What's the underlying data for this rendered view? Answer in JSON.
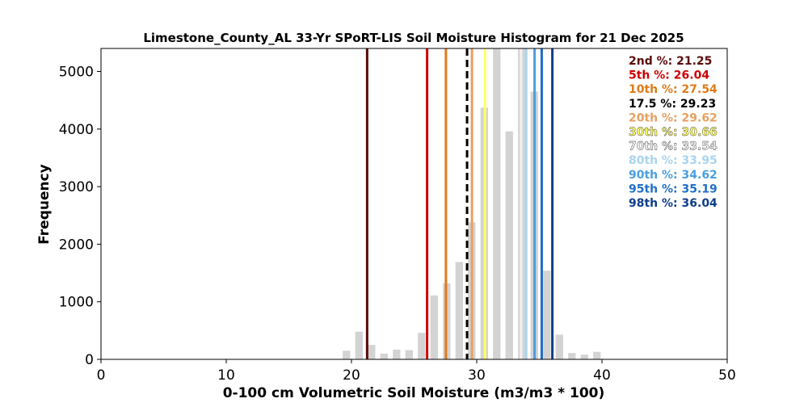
{
  "chart_data": {
    "type": "bar",
    "title": "Limestone_County_AL 33-Yr SPoRT-LIS Soil Moisture Histogram for 21 Dec 2025",
    "xlabel": "0-100 cm Volumetric Soil Moisture (m3/m3 * 100)",
    "ylabel": "Frequency",
    "xlim": [
      0,
      50
    ],
    "ylim": [
      0,
      5400
    ],
    "xticks": [
      0,
      10,
      20,
      30,
      40,
      50
    ],
    "yticks": [
      0,
      1000,
      2000,
      3000,
      4000,
      5000
    ],
    "bar_width": 0.6,
    "bar_color": "#d3d3d3",
    "bars": [
      {
        "x": 19.6,
        "value": 150
      },
      {
        "x": 20.6,
        "value": 480
      },
      {
        "x": 21.6,
        "value": 250
      },
      {
        "x": 22.6,
        "value": 100
      },
      {
        "x": 23.6,
        "value": 170
      },
      {
        "x": 24.6,
        "value": 160
      },
      {
        "x": 25.6,
        "value": 460
      },
      {
        "x": 26.6,
        "value": 1110
      },
      {
        "x": 27.6,
        "value": 1320
      },
      {
        "x": 28.6,
        "value": 1690
      },
      {
        "x": 29.6,
        "value": 2380
      },
      {
        "x": 30.6,
        "value": 4370
      },
      {
        "x": 31.6,
        "value": 5420
      },
      {
        "x": 32.6,
        "value": 3960
      },
      {
        "x": 33.6,
        "value": 5450
      },
      {
        "x": 34.6,
        "value": 4650
      },
      {
        "x": 35.6,
        "value": 1540
      },
      {
        "x": 36.6,
        "value": 430
      },
      {
        "x": 37.6,
        "value": 110
      },
      {
        "x": 38.6,
        "value": 80
      },
      {
        "x": 39.6,
        "value": 130
      }
    ],
    "percentiles": [
      {
        "label": "2nd %: 21.25",
        "value": 21.25,
        "color": "#5a0a0a",
        "dashed": false
      },
      {
        "label": "5th %: 26.04",
        "value": 26.04,
        "color": "#cc0000",
        "dashed": false
      },
      {
        "label": "10th %: 27.54",
        "value": 27.54,
        "color": "#e07b1a",
        "dashed": false
      },
      {
        "label": "17.5 %: 29.23",
        "value": 29.23,
        "color": "#000000",
        "dashed": true
      },
      {
        "label": "20th %: 29.62",
        "value": 29.62,
        "color": "#e8a060",
        "dashed": false
      },
      {
        "label": "30th %: 30.66",
        "value": 30.66,
        "color": "#ffff66",
        "dashed": false
      },
      {
        "label": "70th %: 33.54",
        "value": 33.54,
        "color": "#f2f2f2",
        "dashed": false
      },
      {
        "label": "80th %: 33.95",
        "value": 33.95,
        "color": "#a8d4ee",
        "dashed": false
      },
      {
        "label": "90th %: 34.62",
        "value": 34.62,
        "color": "#4a9ee0",
        "dashed": false
      },
      {
        "label": "95th %: 35.19",
        "value": 35.19,
        "color": "#1f6fc8",
        "dashed": false
      },
      {
        "label": "98th %: 36.04",
        "value": 36.04,
        "color": "#0d3d8c",
        "dashed": false
      }
    ]
  }
}
